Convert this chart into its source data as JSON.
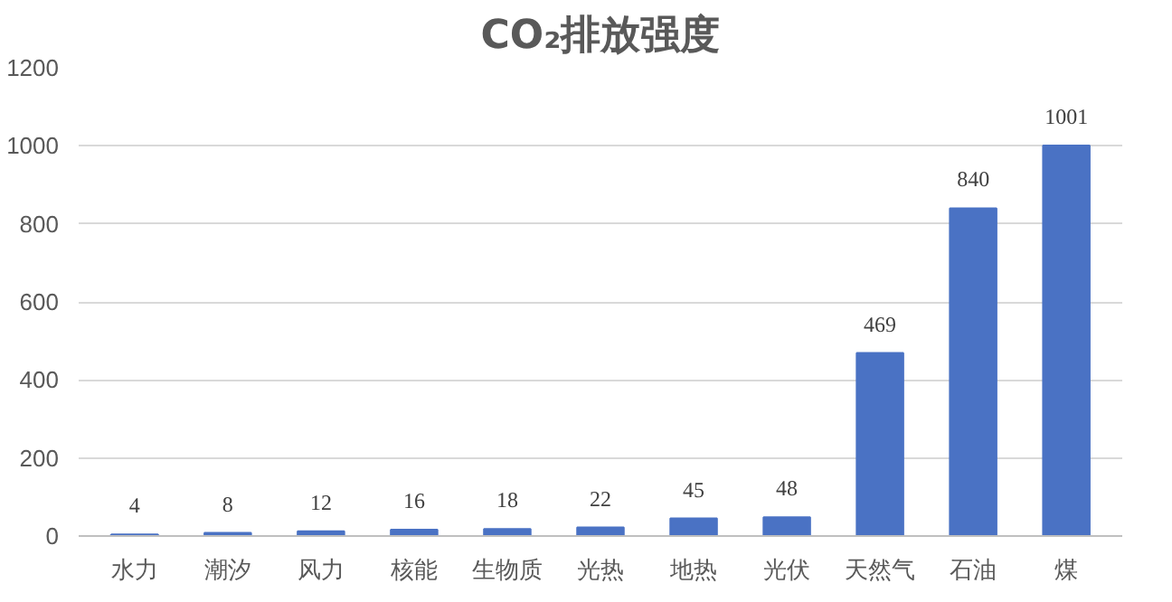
{
  "chart_data": {
    "type": "bar",
    "title": "CO₂排放强度",
    "categories": [
      "水力",
      "潮汐",
      "风力",
      "核能",
      "生物质",
      "光热",
      "地热",
      "光伏",
      "天然气",
      "石油",
      "煤"
    ],
    "values": [
      4,
      8,
      12,
      16,
      18,
      22,
      45,
      48,
      469,
      840,
      1001
    ],
    "color": "#4a72c4",
    "data_labels": true,
    "grid": "y",
    "ylim": [
      0,
      1200
    ],
    "yticks": [
      0,
      200,
      400,
      600,
      800,
      1000,
      1200
    ]
  }
}
